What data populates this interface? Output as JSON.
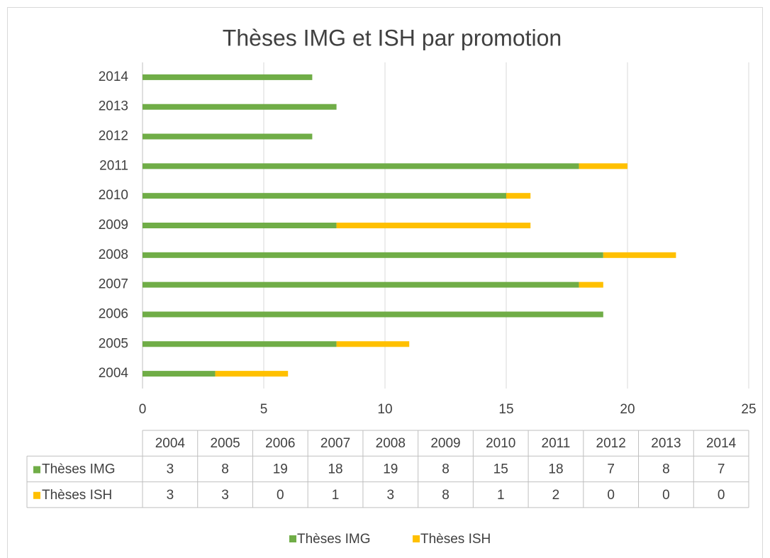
{
  "chart_data": {
    "type": "bar",
    "orientation": "horizontal",
    "stacked": true,
    "title": "Thèses IMG et ISH par promotion",
    "categories": [
      "2004",
      "2005",
      "2006",
      "2007",
      "2008",
      "2009",
      "2010",
      "2011",
      "2012",
      "2013",
      "2014"
    ],
    "series": [
      {
        "name": "Thèses IMG",
        "color": "#70ad47",
        "values": [
          3,
          8,
          19,
          18,
          19,
          8,
          15,
          18,
          7,
          8,
          7
        ]
      },
      {
        "name": "Thèses ISH",
        "color": "#ffc000",
        "values": [
          3,
          3,
          0,
          1,
          3,
          8,
          1,
          2,
          0,
          0,
          0
        ]
      }
    ],
    "xlim": [
      0,
      25
    ],
    "xticks": [
      0,
      5,
      10,
      15,
      20,
      25
    ],
    "grid": true,
    "legend": "bottom",
    "data_table": true
  }
}
